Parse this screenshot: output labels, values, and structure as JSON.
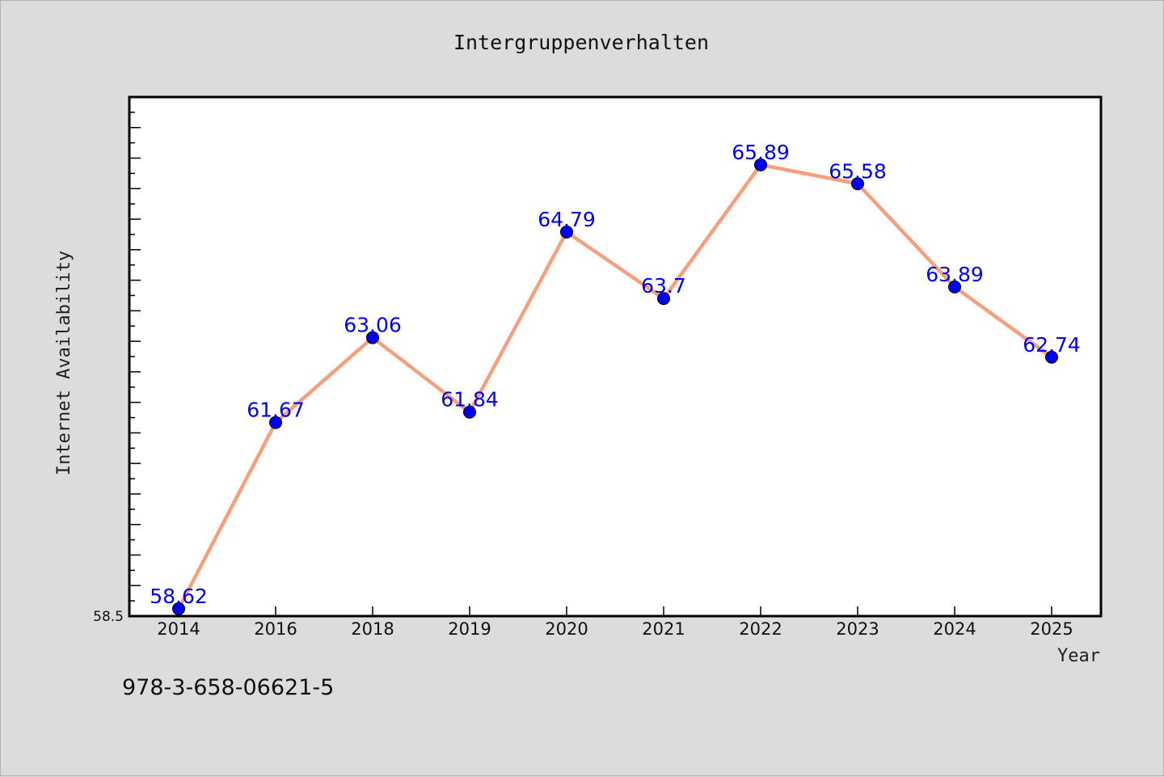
{
  "chart_data": {
    "type": "line",
    "title": "Intergruppenverhalten",
    "xlabel": "Year",
    "ylabel": "Internet Availability",
    "categories": [
      "2014",
      "2016",
      "2018",
      "2019",
      "2020",
      "2021",
      "2022",
      "2023",
      "2024",
      "2025"
    ],
    "series": [
      {
        "values": [
          58.62,
          61.67,
          63.06,
          61.84,
          64.79,
          63.7,
          65.89,
          65.58,
          63.89,
          62.74
        ],
        "line_color": "#f4a07e",
        "marker_color": "#0000ee",
        "label_color": "#0000ee"
      }
    ],
    "y_min_label": "58.5",
    "ylim": [
      58.5,
      67.0
    ],
    "grid": false,
    "legend": "none",
    "data_labels": true
  },
  "footer": {
    "isbn": "978-3-658-06621-5"
  }
}
